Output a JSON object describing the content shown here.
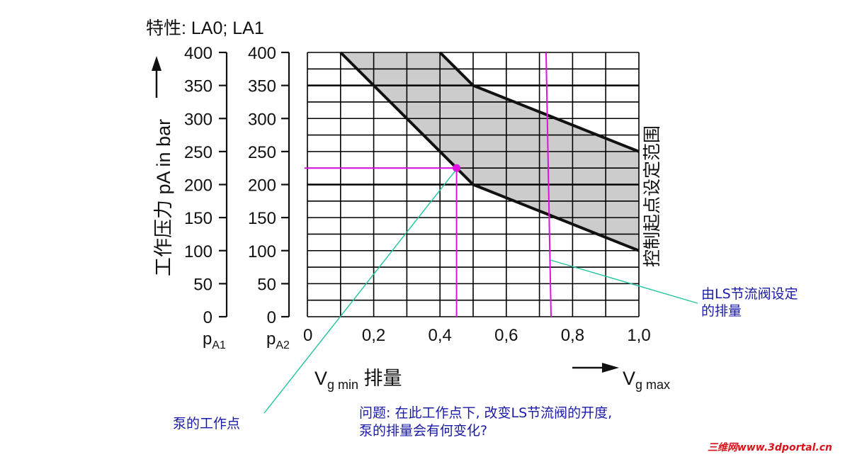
{
  "chart_data": {
    "type": "area",
    "title": "特性: LA0; LA1",
    "ylabel": "工作压力 pA in bar",
    "ylabel_sub": "A",
    "xlabel_left": "Vg min 排量",
    "xlabel_right": "Vg max",
    "x_sub_min": "g min",
    "x_sub_max": "g max",
    "xlim": [
      0,
      1.0
    ],
    "ylim": [
      0,
      400
    ],
    "x_ticks": [
      0,
      0.2,
      0.4,
      0.6,
      0.8,
      1.0
    ],
    "x_tick_labels": [
      "0",
      "0,2",
      "0,4",
      "0,6",
      "0,8",
      "1,0"
    ],
    "y_ticks": [
      0,
      50,
      100,
      150,
      200,
      250,
      300,
      350,
      400
    ],
    "y_tick_labels": [
      "0",
      "50",
      "100",
      "150",
      "200",
      "250",
      "300",
      "350",
      "400"
    ],
    "axis_names": [
      "pA1",
      "pA2"
    ],
    "grid": true,
    "band_label": "控制起点设定范围",
    "band_color": "#cccccc",
    "series": [
      {
        "x": [
          0.1,
          0.5,
          1.0
        ],
        "y": [
          400,
          200,
          100
        ]
      },
      {
        "x": [
          0.4,
          0.5,
          1.0
        ],
        "y": [
          400,
          350,
          250
        ]
      }
    ],
    "operating_point": {
      "x": 0.45,
      "y": 225,
      "color": "#e010e0"
    },
    "ls_displacement_line": {
      "x": [
        0.72,
        0.735
      ],
      "y": [
        400,
        0
      ],
      "color": "#e010e0"
    }
  },
  "annotations": {
    "pump_point": "泵的工作点",
    "ls_line_1": "由LS节流阀设定",
    "ls_line_2": "的排量",
    "question_1": "问题: 在此工作点下, 改变LS节流阀的开度,",
    "question_2": "泵的排量会有何变化?",
    "leader_color": "#22c4a0"
  },
  "watermark": "三维网www.3dportal.cn"
}
